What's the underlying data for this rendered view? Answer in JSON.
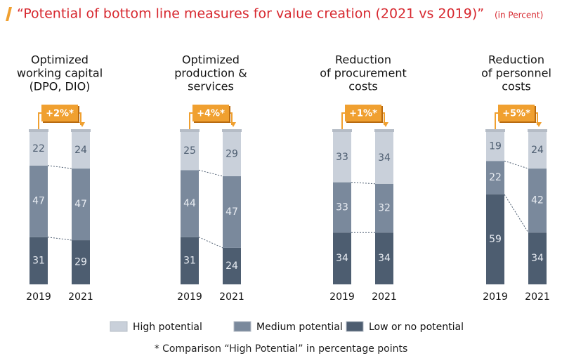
{
  "title": "“Potential of bottom line measures for value creation (2021 vs 2019)”",
  "subtitle": "(in Percent)",
  "footnote": "* Comparison “High Potential” in percentage points",
  "chart_data": [
    {
      "type": "bar",
      "stacked": true,
      "title": [
        "Optimized",
        "working capital",
        "(DPO, DIO)"
      ],
      "annotation": "+2%*",
      "categories": [
        "2019",
        "2021"
      ],
      "ylim": [
        0,
        100
      ],
      "series": [
        {
          "name": "High potential",
          "color": "#c9d0da",
          "values": [
            22,
            24
          ]
        },
        {
          "name": "Medium potential",
          "color": "#7a899c",
          "values": [
            47,
            47
          ]
        },
        {
          "name": "Low or no potential",
          "color": "#4d5d70",
          "values": [
            31,
            29
          ]
        }
      ]
    },
    {
      "type": "bar",
      "stacked": true,
      "title": [
        "Optimized",
        "production &",
        "services"
      ],
      "annotation": "+4%*",
      "categories": [
        "2019",
        "2021"
      ],
      "ylim": [
        0,
        100
      ],
      "series": [
        {
          "name": "High potential",
          "color": "#c9d0da",
          "values": [
            25,
            29
          ]
        },
        {
          "name": "Medium potential",
          "color": "#7a899c",
          "values": [
            44,
            47
          ]
        },
        {
          "name": "Low or no potential",
          "color": "#4d5d70",
          "values": [
            31,
            24
          ]
        }
      ]
    },
    {
      "type": "bar",
      "stacked": true,
      "title": [
        "Reduction",
        "of procurement",
        "costs"
      ],
      "annotation": "+1%*",
      "categories": [
        "2019",
        "2021"
      ],
      "ylim": [
        0,
        100
      ],
      "series": [
        {
          "name": "High potential",
          "color": "#c9d0da",
          "values": [
            33,
            34
          ]
        },
        {
          "name": "Medium potential",
          "color": "#7a899c",
          "values": [
            33,
            32
          ]
        },
        {
          "name": "Low or no potential",
          "color": "#4d5d70",
          "values": [
            34,
            34
          ]
        }
      ]
    },
    {
      "type": "bar",
      "stacked": true,
      "title": [
        "Reduction",
        "of personnel",
        "costs"
      ],
      "annotation": "+5%*",
      "categories": [
        "2019",
        "2021"
      ],
      "ylim": [
        0,
        100
      ],
      "series": [
        {
          "name": "High potential",
          "color": "#c9d0da",
          "values": [
            19,
            24
          ]
        },
        {
          "name": "Medium potential",
          "color": "#7a899c",
          "values": [
            22,
            42
          ]
        },
        {
          "name": "Low or no potential",
          "color": "#4d5d70",
          "values": [
            59,
            34
          ]
        }
      ]
    }
  ]
}
